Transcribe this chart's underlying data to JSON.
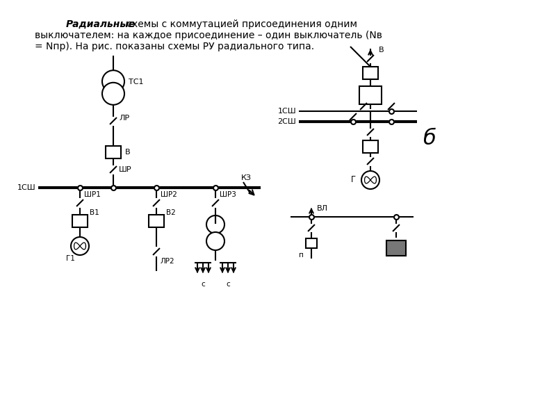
{
  "bg_color": "#ffffff",
  "line_color": "#000000",
  "lw": 1.5,
  "lw_thick": 3.0,
  "text_bold_italic": "Радиальные",
  "text_line1": " схемы с коммутацией присоединения одним",
  "text_line2": "выключателем: на каждое присоединение – один выключатель (Nв",
  "text_line3": "= Nпр). На рис. показаны схемы РУ радиального типа."
}
